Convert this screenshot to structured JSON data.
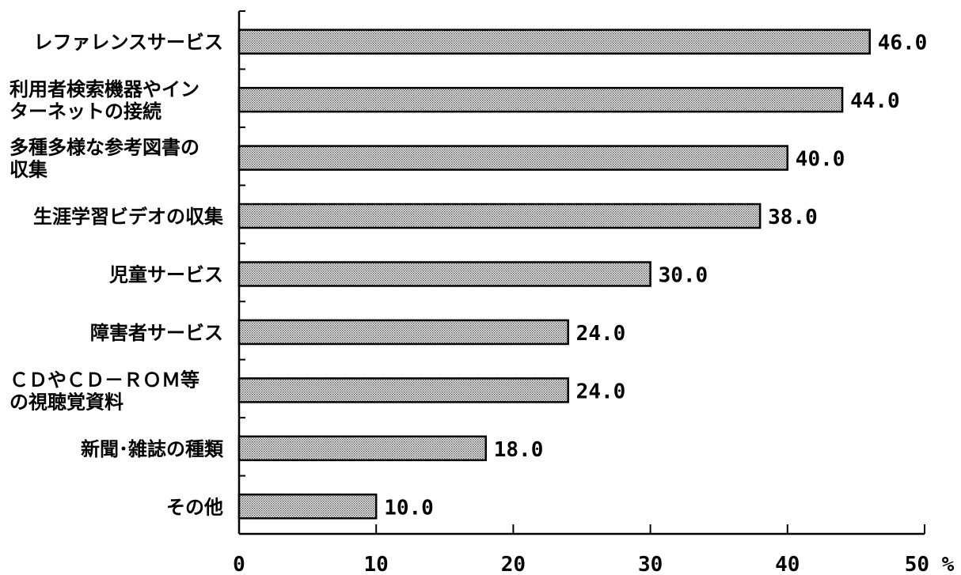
{
  "chart_data": {
    "type": "bar",
    "orientation": "horizontal",
    "categories": [
      "レファレンスサービス",
      "利用者検索機器やインターネットの接続",
      "多種多様な参考図書の収集",
      "生涯学習ビデオの収集",
      "児童サービス",
      "障害者サービス",
      "CDやCD－ROM等の視聴覚資料",
      "新聞･雑誌の種類",
      "その他"
    ],
    "category_label_lines": [
      [
        "レファレンスサービス"
      ],
      [
        "利用者検索機器やイン",
        "ターネットの接続"
      ],
      [
        "多種多様な参考図書の",
        "収集"
      ],
      [
        "生涯学習ビデオの収集"
      ],
      [
        "児童サービス"
      ],
      [
        "障害者サービス"
      ],
      [
        "ＣＤやＣＤ－ＲＯＭ等",
        "の視聴覚資料"
      ],
      [
        "新聞･雑誌の種類"
      ],
      [
        "その他"
      ]
    ],
    "values": [
      46.0,
      44.0,
      40.0,
      38.0,
      30.0,
      24.0,
      24.0,
      18.0,
      10.0
    ],
    "value_labels": [
      "46.0",
      "44.0",
      "40.0",
      "38.0",
      "30.0",
      "24.0",
      "24.0",
      "18.0",
      "10.0"
    ],
    "xlim": [
      0,
      50
    ],
    "x_ticks": [
      0,
      10,
      20,
      30,
      40,
      50
    ],
    "x_tick_labels": [
      "0",
      "10",
      "20",
      "30",
      "40",
      "50 %"
    ],
    "title": "",
    "xlabel": "",
    "ylabel": "",
    "grid": false,
    "legend": "none",
    "bar_fill": "#b8b8b8",
    "bar_stroke": "#000000"
  }
}
